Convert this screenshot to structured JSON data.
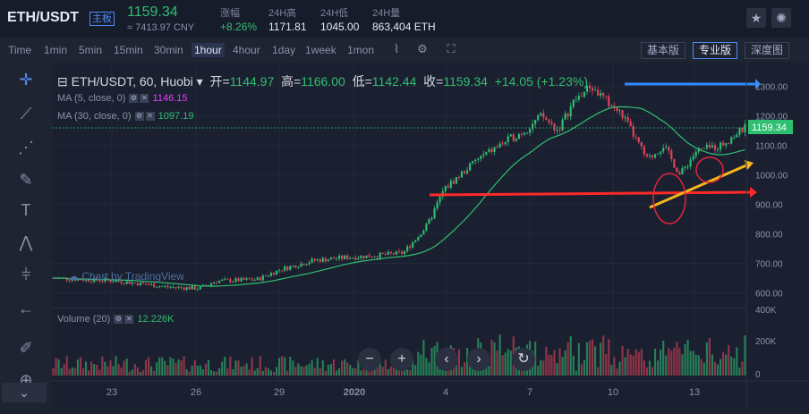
{
  "header": {
    "pair": "ETH/USDT",
    "badge": "主板",
    "last_price": "1159.34",
    "cny": "≈ 7413.97 CNY",
    "stats": [
      {
        "label": "涨幅",
        "value": "+8.26%"
      },
      {
        "label": "24H高",
        "value": "1171.81"
      },
      {
        "label": "24H低",
        "value": "1045.00"
      },
      {
        "label": "24H量",
        "value": "863,404 ETH"
      }
    ]
  },
  "intervals": [
    "Time",
    "1min",
    "5min",
    "15min",
    "30min",
    "1hour",
    "4hour",
    "1day",
    "1week",
    "1mon"
  ],
  "active_interval": "1hour",
  "modes": [
    "基本版",
    "专业版",
    "深度图"
  ],
  "active_mode": "专业版",
  "legend": {
    "title": "ETH/USDT, 60, Huobi",
    "open_label": "开=",
    "open": "1144.97",
    "high_label": "高=",
    "high": "1166.00",
    "low_label": "低=",
    "low": "1142.44",
    "close_label": "收=",
    "close": "1159.34",
    "change": "+14.05 (+1.23%)"
  },
  "ma5": {
    "label": "MA (5, close, 0)",
    "value": "1146.15"
  },
  "ma30": {
    "label": "MA (30, close, 0)",
    "value": "1097.19"
  },
  "volume": {
    "label": "Volume (20)",
    "value": "12.226K"
  },
  "watermark": "Chart by TradingView",
  "price_axis": [
    "1300.00",
    "1200.00",
    "1100.00",
    "1000.00",
    "900.00",
    "800.00",
    "700.00",
    "600.00"
  ],
  "current_price_tag": "1159.34",
  "volume_axis": [
    "400K",
    "200K",
    "0"
  ],
  "time_axis": [
    "23",
    "26",
    "29",
    "2020",
    "4",
    "7",
    "10",
    "13"
  ],
  "colors": {
    "up": "#2fbf71",
    "down": "#e0455a",
    "accent": "#4f8bf0",
    "ma5": "#e040fb",
    "ma30": "#2fbf71"
  },
  "chart_data": {
    "type": "candlestick",
    "ylim": [
      550,
      1350
    ],
    "series": [
      {
        "name": "MA (5, close, 0)",
        "last": 1146.15
      },
      {
        "name": "MA (30, close, 0)",
        "last": 1097.19
      }
    ],
    "price_path": [
      [
        0,
        650
      ],
      [
        8,
        640
      ],
      [
        14,
        620
      ],
      [
        18,
        615
      ],
      [
        20,
        640
      ],
      [
        25,
        645
      ],
      [
        28,
        680
      ],
      [
        32,
        710
      ],
      [
        36,
        720
      ],
      [
        39,
        725
      ],
      [
        43,
        735
      ],
      [
        46,
        830
      ],
      [
        48,
        950
      ],
      [
        52,
        1050
      ],
      [
        56,
        1120
      ],
      [
        58,
        1150
      ],
      [
        60,
        1200
      ],
      [
        62,
        1150
      ],
      [
        64,
        1250
      ],
      [
        66,
        1300
      ],
      [
        70,
        1200
      ],
      [
        73,
        1050
      ],
      [
        75,
        1100
      ],
      [
        77,
        1000
      ],
      [
        79,
        1080
      ],
      [
        82,
        1100
      ],
      [
        85,
        1159.34
      ]
    ]
  }
}
